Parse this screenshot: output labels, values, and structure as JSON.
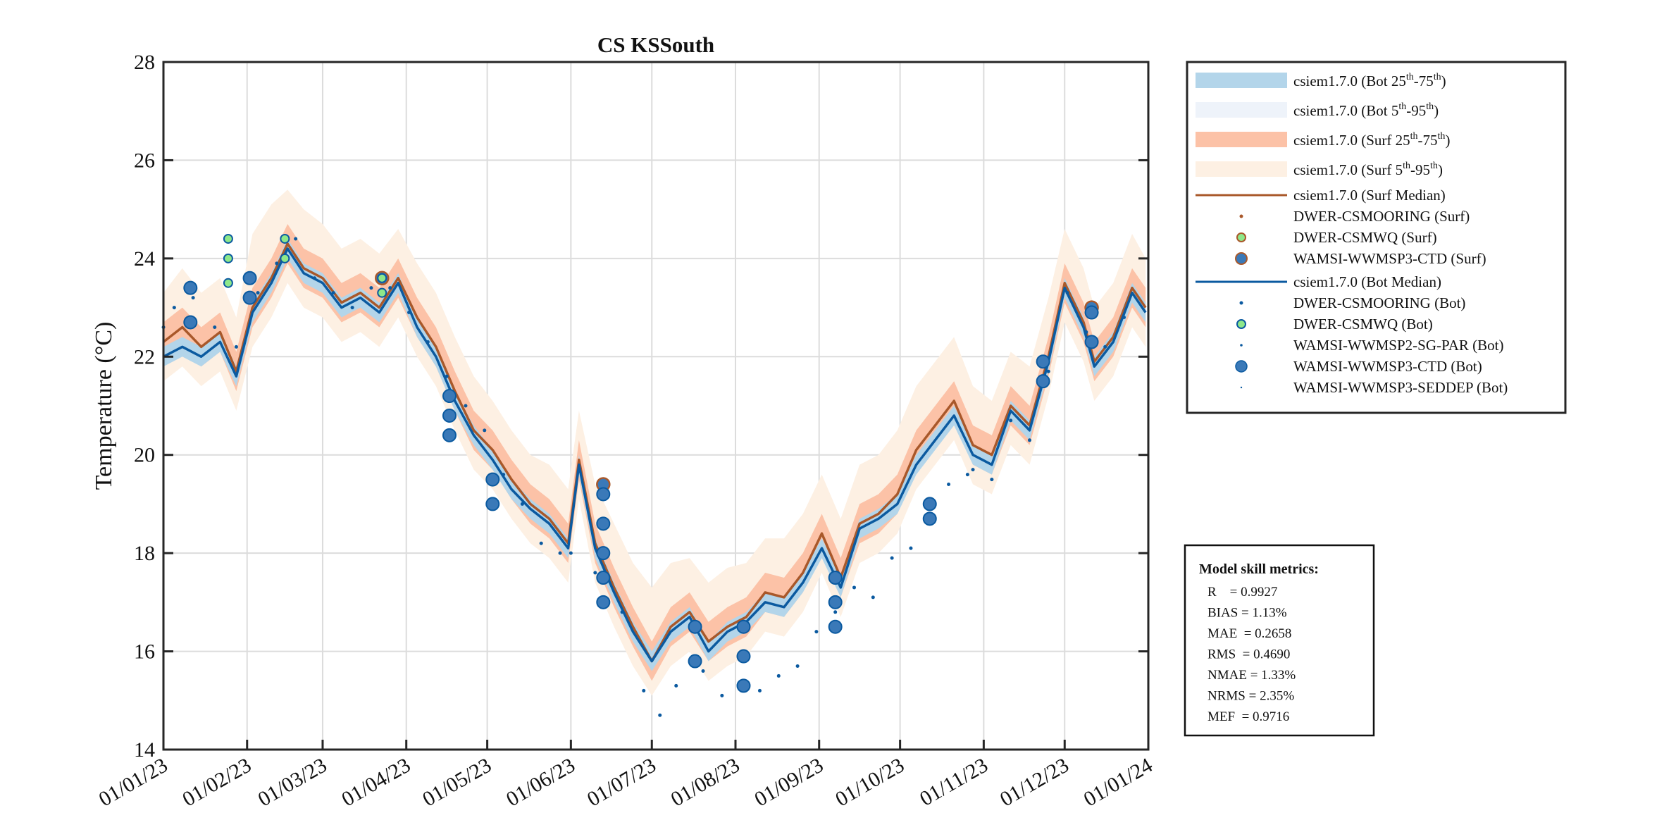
{
  "chart_data": {
    "type": "line",
    "title": "CS KSSouth",
    "xlabel": "",
    "ylabel": "Temperature (°C)",
    "ylim": [
      14,
      28
    ],
    "xlim": [
      "2023-01-01",
      "2024-01-01"
    ],
    "yticks": [
      14,
      16,
      18,
      20,
      22,
      24,
      26,
      28
    ],
    "xticks": [
      "2023-01-01",
      "2023-02-01",
      "2023-03-01",
      "2023-04-01",
      "2023-05-01",
      "2023-06-01",
      "2023-07-01",
      "2023-08-01",
      "2023-09-01",
      "2023-10-01",
      "2023-11-01",
      "2023-12-01",
      "2024-01-01"
    ],
    "xtick_labels": [
      "01/01/23",
      "01/02/23",
      "01/03/23",
      "01/04/23",
      "01/05/23",
      "01/06/23",
      "01/07/23",
      "01/08/23",
      "01/09/23",
      "01/10/23",
      "01/11/23",
      "01/12/23",
      "01/01/24"
    ],
    "grid": true,
    "legend_position": "outside-right",
    "colors": {
      "surf": "#a9582a",
      "bot": "#0b5aa0",
      "bot_iqr": "#b3d5ea",
      "bot_p5_95": "#eef3fa",
      "surf_iqr": "#fcc2a7",
      "surf_p5_95": "#fdf0e3",
      "mwq": "#8ee88a",
      "ctd": "#3a79b8"
    },
    "x": [
      "2023-01-01",
      "2023-01-08",
      "2023-01-15",
      "2023-01-22",
      "2023-01-28",
      "2023-02-03",
      "2023-02-10",
      "2023-02-16",
      "2023-02-22",
      "2023-03-01",
      "2023-03-08",
      "2023-03-15",
      "2023-03-22",
      "2023-03-29",
      "2023-04-05",
      "2023-04-12",
      "2023-04-19",
      "2023-04-26",
      "2023-05-03",
      "2023-05-10",
      "2023-05-17",
      "2023-05-24",
      "2023-05-31",
      "2023-06-04",
      "2023-06-10",
      "2023-06-17",
      "2023-06-24",
      "2023-07-01",
      "2023-07-08",
      "2023-07-15",
      "2023-07-22",
      "2023-07-29",
      "2023-08-05",
      "2023-08-12",
      "2023-08-19",
      "2023-08-26",
      "2023-09-02",
      "2023-09-09",
      "2023-09-16",
      "2023-09-23",
      "2023-09-30",
      "2023-10-07",
      "2023-10-14",
      "2023-10-21",
      "2023-10-28",
      "2023-11-04",
      "2023-11-11",
      "2023-11-18",
      "2023-11-25",
      "2023-12-01",
      "2023-12-08",
      "2023-12-12",
      "2023-12-19",
      "2023-12-26",
      "2023-12-31"
    ],
    "series": [
      {
        "name": "csiem1.7.0 (Surf Median)",
        "values": [
          22.3,
          22.6,
          22.2,
          22.5,
          21.7,
          23.0,
          23.6,
          24.3,
          23.8,
          23.6,
          23.1,
          23.3,
          23.0,
          23.6,
          22.8,
          22.2,
          21.3,
          20.5,
          20.1,
          19.5,
          19.0,
          18.7,
          18.2,
          19.9,
          18.2,
          17.3,
          16.5,
          15.8,
          16.5,
          16.8,
          16.2,
          16.5,
          16.7,
          17.2,
          17.1,
          17.6,
          18.4,
          17.5,
          18.6,
          18.8,
          19.2,
          20.1,
          20.6,
          21.1,
          20.2,
          20.0,
          21.0,
          20.6,
          22.0,
          23.5,
          22.7,
          21.9,
          22.4,
          23.4,
          23.0
        ]
      },
      {
        "name": "csiem1.7.0 (Bot Median)",
        "values": [
          22.0,
          22.2,
          22.0,
          22.3,
          21.6,
          22.9,
          23.5,
          24.2,
          23.7,
          23.5,
          23.0,
          23.2,
          22.9,
          23.5,
          22.6,
          22.0,
          21.1,
          20.4,
          19.9,
          19.3,
          18.9,
          18.6,
          18.1,
          19.8,
          18.1,
          17.2,
          16.4,
          15.8,
          16.4,
          16.7,
          16.0,
          16.4,
          16.6,
          17.0,
          16.9,
          17.4,
          18.1,
          17.3,
          18.5,
          18.7,
          19.0,
          19.8,
          20.3,
          20.8,
          20.0,
          19.8,
          20.9,
          20.5,
          21.9,
          23.4,
          22.6,
          21.8,
          22.3,
          23.3,
          22.9
        ]
      },
      {
        "name": "csiem1.7.0 (Surf 25th-75th)",
        "lower": [
          21.9,
          22.2,
          21.8,
          22.1,
          21.3,
          22.6,
          23.2,
          23.9,
          23.4,
          23.2,
          22.7,
          22.9,
          22.6,
          23.2,
          22.4,
          21.8,
          20.9,
          20.1,
          19.7,
          19.1,
          18.6,
          18.3,
          17.8,
          19.5,
          17.8,
          16.9,
          16.1,
          15.4,
          16.1,
          16.4,
          15.8,
          16.1,
          16.3,
          16.8,
          16.7,
          17.2,
          18.0,
          17.1,
          18.2,
          18.4,
          18.8,
          19.7,
          20.2,
          20.7,
          19.8,
          19.6,
          20.6,
          20.2,
          21.6,
          23.1,
          22.3,
          21.5,
          22.0,
          23.0,
          22.6
        ],
        "upper": [
          22.7,
          23.0,
          22.6,
          22.9,
          22.1,
          23.4,
          24.0,
          24.7,
          24.2,
          24.0,
          23.5,
          23.7,
          23.4,
          24.0,
          23.2,
          22.6,
          21.7,
          20.9,
          20.5,
          19.9,
          19.4,
          19.1,
          18.6,
          20.3,
          18.6,
          17.7,
          16.9,
          16.2,
          16.9,
          17.2,
          16.6,
          16.9,
          17.1,
          17.6,
          17.5,
          18.0,
          18.8,
          17.9,
          19.0,
          19.2,
          19.6,
          20.5,
          21.0,
          21.5,
          20.6,
          20.4,
          21.4,
          21.0,
          22.4,
          23.9,
          23.1,
          22.3,
          22.8,
          23.8,
          23.4
        ]
      },
      {
        "name": "csiem1.7.0 (Surf 5th-95th)",
        "lower": [
          21.5,
          21.8,
          21.4,
          21.7,
          20.9,
          22.2,
          22.8,
          23.5,
          23.0,
          22.8,
          22.3,
          22.5,
          22.2,
          22.8,
          22.0,
          21.4,
          20.5,
          19.7,
          19.3,
          18.7,
          18.2,
          17.9,
          17.4,
          19.1,
          17.4,
          16.5,
          15.7,
          15.1,
          15.7,
          16.0,
          15.4,
          15.7,
          15.9,
          16.4,
          16.3,
          16.8,
          17.6,
          16.7,
          17.8,
          18.0,
          18.4,
          19.3,
          19.8,
          20.3,
          19.4,
          19.2,
          20.2,
          19.8,
          21.2,
          22.7,
          21.9,
          21.1,
          21.6,
          22.6,
          22.2
        ],
        "upper": [
          23.3,
          23.8,
          23.3,
          23.6,
          22.8,
          24.5,
          25.1,
          25.4,
          25.0,
          24.7,
          24.2,
          24.4,
          24.1,
          24.6,
          23.9,
          23.3,
          22.4,
          21.6,
          21.1,
          20.5,
          20.0,
          19.8,
          19.3,
          20.9,
          19.4,
          18.6,
          17.8,
          17.3,
          17.8,
          17.9,
          17.4,
          17.7,
          17.8,
          18.3,
          18.3,
          18.8,
          19.6,
          18.7,
          19.8,
          20.0,
          20.5,
          21.4,
          21.9,
          22.4,
          21.4,
          21.1,
          22.1,
          21.8,
          23.2,
          24.6,
          23.8,
          23.0,
          23.5,
          24.5,
          24.0
        ]
      },
      {
        "name": "csiem1.7.0 (Bot 25th-75th)",
        "lower": [
          21.8,
          22.0,
          21.8,
          22.1,
          21.4,
          22.7,
          23.3,
          24.0,
          23.5,
          23.3,
          22.8,
          23.0,
          22.7,
          23.3,
          22.4,
          21.8,
          20.9,
          20.2,
          19.7,
          19.1,
          18.7,
          18.4,
          17.9,
          19.6,
          17.9,
          17.0,
          16.2,
          15.6,
          16.2,
          16.5,
          15.8,
          16.2,
          16.4,
          16.8,
          16.7,
          17.2,
          17.9,
          17.1,
          18.3,
          18.5,
          18.8,
          19.6,
          20.1,
          20.6,
          19.8,
          19.6,
          20.7,
          20.3,
          21.7,
          23.2,
          22.4,
          21.6,
          22.1,
          23.1,
          22.7
        ],
        "upper": [
          22.2,
          22.4,
          22.2,
          22.5,
          21.8,
          23.1,
          23.7,
          24.4,
          23.9,
          23.7,
          23.2,
          23.4,
          23.1,
          23.7,
          22.8,
          22.2,
          21.3,
          20.6,
          20.1,
          19.5,
          19.1,
          18.8,
          18.3,
          20.0,
          18.3,
          17.4,
          16.6,
          16.0,
          16.6,
          16.9,
          16.2,
          16.6,
          16.8,
          17.2,
          17.1,
          17.6,
          18.3,
          17.5,
          18.7,
          18.9,
          19.2,
          20.0,
          20.5,
          21.0,
          20.2,
          20.0,
          21.1,
          20.7,
          22.1,
          23.6,
          22.8,
          22.0,
          22.5,
          23.5,
          23.1
        ]
      },
      {
        "name": "DWER-CSMOORING (Bot)",
        "points": [
          [
            "2023-01-01",
            22.6
          ],
          [
            "2023-01-05",
            23.0
          ],
          [
            "2023-01-12",
            23.2
          ],
          [
            "2023-01-20",
            22.6
          ],
          [
            "2023-01-28",
            22.2
          ],
          [
            "2023-02-05",
            23.3
          ],
          [
            "2023-02-12",
            23.9
          ],
          [
            "2023-02-19",
            24.4
          ],
          [
            "2023-02-26",
            23.6
          ],
          [
            "2023-03-05",
            23.3
          ],
          [
            "2023-03-12",
            23.0
          ],
          [
            "2023-03-19",
            23.4
          ],
          [
            "2023-03-26",
            23.4
          ],
          [
            "2023-04-02",
            22.9
          ],
          [
            "2023-04-09",
            22.3
          ],
          [
            "2023-04-16",
            21.6
          ],
          [
            "2023-04-23",
            21.0
          ],
          [
            "2023-04-30",
            20.5
          ],
          [
            "2023-05-07",
            19.6
          ],
          [
            "2023-05-14",
            19.0
          ],
          [
            "2023-05-21",
            18.2
          ],
          [
            "2023-05-28",
            18.0
          ],
          [
            "2023-10-28",
            19.7
          ],
          [
            "2023-11-04",
            19.5
          ],
          [
            "2023-11-11",
            20.7
          ],
          [
            "2023-11-18",
            20.3
          ],
          [
            "2023-11-25",
            21.7
          ],
          [
            "2023-12-02",
            23.3
          ],
          [
            "2023-12-09",
            22.5
          ],
          [
            "2023-12-16",
            22.2
          ],
          [
            "2023-12-23",
            22.8
          ]
        ]
      },
      {
        "name": "WAMSI-WWMSP3-SEDDEP (Bot)",
        "points": [
          [
            "2023-06-01",
            18.0
          ],
          [
            "2023-06-10",
            17.6
          ],
          [
            "2023-06-20",
            16.8
          ],
          [
            "2023-06-28",
            15.2
          ],
          [
            "2023-07-04",
            14.7
          ],
          [
            "2023-07-10",
            15.3
          ],
          [
            "2023-07-20",
            15.6
          ],
          [
            "2023-07-27",
            15.1
          ],
          [
            "2023-08-03",
            15.3
          ],
          [
            "2023-08-10",
            15.2
          ],
          [
            "2023-08-17",
            15.5
          ],
          [
            "2023-08-24",
            15.7
          ],
          [
            "2023-08-31",
            16.4
          ],
          [
            "2023-09-07",
            16.8
          ],
          [
            "2023-09-14",
            17.3
          ],
          [
            "2023-09-21",
            17.1
          ],
          [
            "2023-09-28",
            17.9
          ],
          [
            "2023-10-05",
            18.1
          ],
          [
            "2023-10-12",
            18.8
          ],
          [
            "2023-10-19",
            19.4
          ],
          [
            "2023-10-26",
            19.6
          ]
        ]
      },
      {
        "name": "WAMSI-WWMSP3-CTD (Bot)",
        "points": [
          [
            "2023-01-11",
            23.4
          ],
          [
            "2023-01-11",
            22.7
          ],
          [
            "2023-02-02",
            23.6
          ],
          [
            "2023-02-02",
            23.2
          ],
          [
            "2023-04-17",
            21.2
          ],
          [
            "2023-04-17",
            20.8
          ],
          [
            "2023-04-17",
            20.4
          ],
          [
            "2023-05-03",
            19.5
          ],
          [
            "2023-05-03",
            19.0
          ],
          [
            "2023-06-13",
            19.2
          ],
          [
            "2023-06-13",
            18.6
          ],
          [
            "2023-06-13",
            18.0
          ],
          [
            "2023-06-13",
            17.5
          ],
          [
            "2023-06-13",
            17.0
          ],
          [
            "2023-07-17",
            16.5
          ],
          [
            "2023-07-17",
            15.8
          ],
          [
            "2023-08-04",
            16.5
          ],
          [
            "2023-08-04",
            15.9
          ],
          [
            "2023-08-04",
            15.3
          ],
          [
            "2023-09-07",
            17.5
          ],
          [
            "2023-09-07",
            17.0
          ],
          [
            "2023-09-07",
            16.5
          ],
          [
            "2023-10-12",
            19.0
          ],
          [
            "2023-10-12",
            18.7
          ],
          [
            "2023-11-23",
            21.9
          ],
          [
            "2023-11-23",
            21.5
          ],
          [
            "2023-12-11",
            22.9
          ],
          [
            "2023-12-11",
            22.3
          ]
        ]
      },
      {
        "name": "WAMSI-WWMSP3-CTD (Surf)",
        "points": [
          [
            "2023-06-13",
            19.4
          ],
          [
            "2023-12-11",
            23.0
          ],
          [
            "2023-03-23",
            23.6
          ]
        ]
      },
      {
        "name": "DWER-CSMWQ (Surf)",
        "points": [
          [
            "2023-01-25",
            24.4
          ],
          [
            "2023-01-25",
            24.0
          ],
          [
            "2023-01-25",
            23.5
          ],
          [
            "2023-02-15",
            24.4
          ],
          [
            "2023-02-15",
            24.0
          ],
          [
            "2023-03-23",
            23.6
          ],
          [
            "2023-03-23",
            23.3
          ]
        ]
      }
    ]
  },
  "legend": {
    "items": [
      {
        "label": "csiem1.7.0 (Bot 25",
        "sup1": "th",
        "mid": "-75",
        "sup2": "th",
        "end": ")",
        "symbol": "patch",
        "color": "#b3d5ea"
      },
      {
        "label": "csiem1.7.0 (Bot 5",
        "sup1": "th",
        "mid": "-95",
        "sup2": "th",
        "end": ")",
        "symbol": "patch",
        "color": "#eef3fa"
      },
      {
        "label": "csiem1.7.0 (Surf 25",
        "sup1": "th",
        "mid": "-75",
        "sup2": "th",
        "end": ")",
        "symbol": "patch",
        "color": "#fcc2a7"
      },
      {
        "label": "csiem1.7.0 (Surf 5",
        "sup1": "th",
        "mid": "-95",
        "sup2": "th",
        "end": ")",
        "symbol": "patch",
        "color": "#fdf0e3"
      },
      {
        "label": "csiem1.7.0 (Surf Median)",
        "symbol": "line",
        "color": "#a9582a"
      },
      {
        "label": "DWER-CSMOORING (Surf)",
        "symbol": "dot",
        "color": "#a9582a"
      },
      {
        "label": "DWER-CSMWQ (Surf)",
        "symbol": "mwq-surf",
        "color": "#8ee88a"
      },
      {
        "label": "WAMSI-WWMSP3-CTD (Surf)",
        "symbol": "ctd-surf",
        "color": "#3a79b8"
      },
      {
        "label": "csiem1.7.0 (Bot Median)",
        "symbol": "line",
        "color": "#0b5aa0"
      },
      {
        "label": "DWER-CSMOORING (Bot)",
        "symbol": "dot",
        "color": "#0b5aa0"
      },
      {
        "label": "DWER-CSMWQ (Bot)",
        "symbol": "mwq-bot",
        "color": "#8ee88a"
      },
      {
        "label": "WAMSI-WWMSP2-SG-PAR (Bot)",
        "symbol": "tiny",
        "color": "#0b5aa0"
      },
      {
        "label": "WAMSI-WWMSP3-CTD (Bot)",
        "symbol": "ctd-bot",
        "color": "#3a79b8"
      },
      {
        "label": "WAMSI-WWMSP3-SEDDEP (Bot)",
        "symbol": "tinier",
        "color": "#0b5aa0"
      }
    ]
  },
  "metrics": {
    "title": "Model skill metrics:",
    "lines": [
      "R    = 0.9927",
      "BIAS = 1.13%",
      "MAE  = 0.2658",
      "RMS  = 0.4690",
      "NMAE = 1.33%",
      "NRMS = 2.35%",
      "MEF  = 0.9716"
    ]
  }
}
